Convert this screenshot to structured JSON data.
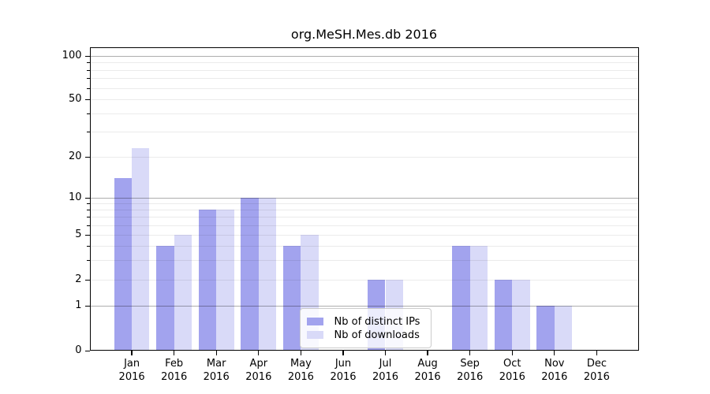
{
  "chart_data": {
    "type": "bar",
    "title": "org.MeSH.Mes.db 2016",
    "x_categories": [
      {
        "month": "Jan",
        "year": "2016"
      },
      {
        "month": "Feb",
        "year": "2016"
      },
      {
        "month": "Mar",
        "year": "2016"
      },
      {
        "month": "Apr",
        "year": "2016"
      },
      {
        "month": "May",
        "year": "2016"
      },
      {
        "month": "Jun",
        "year": "2016"
      },
      {
        "month": "Jul",
        "year": "2016"
      },
      {
        "month": "Aug",
        "year": "2016"
      },
      {
        "month": "Sep",
        "year": "2016"
      },
      {
        "month": "Oct",
        "year": "2016"
      },
      {
        "month": "Nov",
        "year": "2016"
      },
      {
        "month": "Dec",
        "year": "2016"
      }
    ],
    "series": [
      {
        "name": "Nb of distinct IPs",
        "color": "#a2a3ee",
        "values": [
          14,
          4,
          8,
          10,
          4,
          0,
          2,
          0,
          4,
          2,
          1,
          0
        ]
      },
      {
        "name": "Nb of downloads",
        "color": "#d9daf8",
        "values": [
          23,
          5,
          8,
          10,
          5,
          0,
          2,
          0,
          4,
          2,
          1,
          0
        ]
      }
    ],
    "y_axis": {
      "scale": "log-like",
      "ylim": [
        0,
        100
      ],
      "ticks": [
        {
          "value": 100,
          "label": "100",
          "decade": true
        },
        {
          "value": 50,
          "label": "50",
          "decade": false
        },
        {
          "value": 20,
          "label": "20",
          "decade": false
        },
        {
          "value": 10,
          "label": "10",
          "decade": true
        },
        {
          "value": 5,
          "label": "5",
          "decade": false
        },
        {
          "value": 2,
          "label": "2",
          "decade": false
        },
        {
          "value": 1,
          "label": "1",
          "decade": true
        },
        {
          "value": 0,
          "label": "0",
          "decade": false
        }
      ],
      "minor_values": [
        3,
        4,
        6,
        7,
        8,
        9,
        30,
        40,
        60,
        70,
        80,
        90
      ]
    },
    "legend": {
      "position": "lower-center",
      "entries": [
        "Nb of distinct IPs",
        "Nb of downloads"
      ]
    },
    "grid": true
  }
}
